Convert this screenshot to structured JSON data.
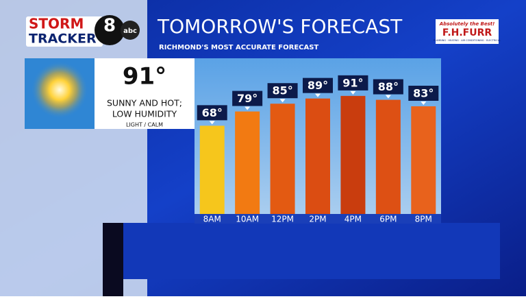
{
  "header": {
    "logo_top": "STORM",
    "logo_bottom": "TRACKER",
    "logo_number": "8",
    "logo_network": "abc",
    "sponsor_tagline": "Absolutely the Best!",
    "sponsor_name": "F.H.FURR",
    "sponsor_services": "PLUMBING · HEATING · AIR CONDITIONING · ELECTRICAL"
  },
  "summary": {
    "temperature": "91°",
    "condition_line1": "SUNNY AND HOT;",
    "condition_line2": "LOW HUMIDITY",
    "wind": "LIGHT / CALM"
  },
  "chart_data": {
    "type": "bar",
    "title": "TOMORROW'S FORECAST",
    "subtitle": "RICHMOND'S MOST ACCURATE FORECAST",
    "categories": [
      "8AM",
      "10AM",
      "12PM",
      "2PM",
      "4PM",
      "6PM",
      "8PM"
    ],
    "values": [
      68,
      79,
      85,
      89,
      91,
      88,
      83
    ],
    "value_labels": [
      "68°",
      "79°",
      "85°",
      "89°",
      "91°",
      "88°",
      "83°"
    ],
    "colors": [
      "#f6c61c",
      "#f27a12",
      "#e35a12",
      "#db4d12",
      "#c93d0e",
      "#dd5014",
      "#e8621c"
    ],
    "ylim": [
      0,
      120
    ]
  }
}
